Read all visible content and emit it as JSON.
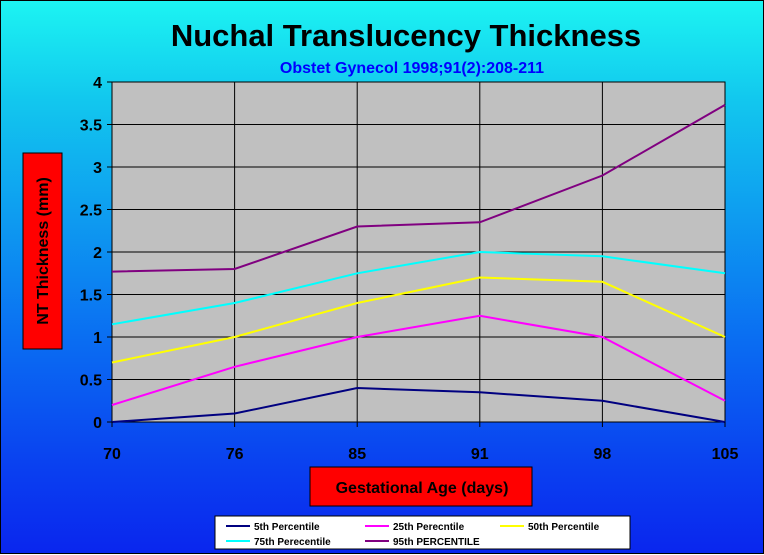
{
  "chart_data": {
    "type": "line",
    "title": "Nuchal Translucency Thickness",
    "subtitle": "Obstet Gynecol 1998;91(2):208-211",
    "xlabel": "Gestational Age (days)",
    "ylabel": "NT Thickness (mm)",
    "categories": [
      "70",
      "76",
      "85",
      "91",
      "98",
      "105"
    ],
    "ylim": [
      0,
      4
    ],
    "yticks": [
      "0",
      "0.5",
      "1",
      "1.5",
      "2",
      "2.5",
      "3",
      "3.5",
      "4"
    ],
    "grid": true,
    "legend_position": "bottom",
    "series": [
      {
        "name": "5th Percentile",
        "color": "#000080",
        "values": [
          0.0,
          0.1,
          0.4,
          0.35,
          0.25,
          0.0
        ]
      },
      {
        "name": "25th Perecntile",
        "color": "#FF00FF",
        "values": [
          0.2,
          0.65,
          1.0,
          1.25,
          1.0,
          0.25
        ]
      },
      {
        "name": "50th Percentile",
        "color": "#FFFF00",
        "values": [
          0.7,
          1.0,
          1.4,
          1.7,
          1.65,
          1.0
        ]
      },
      {
        "name": "75th Perecentile",
        "color": "#00FFFF",
        "values": [
          1.15,
          1.4,
          1.75,
          2.0,
          1.95,
          1.75
        ]
      },
      {
        "name": "95th PERCENTILE",
        "color": "#800080",
        "values": [
          1.77,
          1.8,
          2.3,
          2.35,
          2.9,
          3.73
        ]
      }
    ],
    "colors": {
      "plot_background": "#C0C0C0",
      "label_box": "#FF0000",
      "title": "#000000",
      "subtitle": "#0000FF"
    }
  }
}
